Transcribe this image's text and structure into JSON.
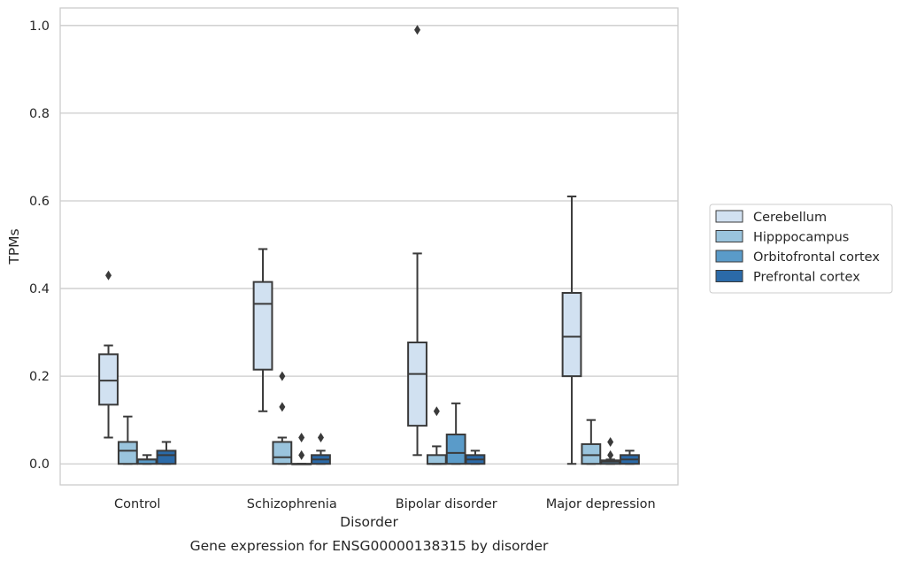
{
  "chart_data": {
    "type": "box",
    "title": "",
    "caption": "Gene expression for ENSG00000138315 by disorder",
    "xlabel": "Disorder",
    "ylabel": "TPMs",
    "ylim": [
      -0.048,
      1.04
    ],
    "yticks": [
      "0.0",
      "0.2",
      "0.4",
      "0.6",
      "0.8",
      "1.0"
    ],
    "grid": true,
    "legend_position": "right",
    "categories": [
      "Control",
      "Schizophrenia",
      "Bipolar disorder",
      "Major depression"
    ],
    "series": [
      {
        "name": "Cerebellum",
        "color": "#d1e1f1",
        "boxes": [
          {
            "whislo": 0.06,
            "q1": 0.135,
            "med": 0.19,
            "q3": 0.25,
            "whishi": 0.27,
            "fliers": [
              0.43
            ]
          },
          {
            "whislo": 0.12,
            "q1": 0.215,
            "med": 0.365,
            "q3": 0.415,
            "whishi": 0.49,
            "fliers": []
          },
          {
            "whislo": 0.02,
            "q1": 0.087,
            "med": 0.205,
            "q3": 0.277,
            "whishi": 0.48,
            "fliers": [
              0.99
            ]
          },
          {
            "whislo": 0.0,
            "q1": 0.2,
            "med": 0.29,
            "q3": 0.39,
            "whishi": 0.61,
            "fliers": []
          }
        ]
      },
      {
        "name": "Hipppocampus",
        "color": "#9ac4dd",
        "boxes": [
          {
            "whislo": 0.0,
            "q1": 0.0,
            "med": 0.03,
            "q3": 0.05,
            "whishi": 0.108,
            "fliers": []
          },
          {
            "whislo": 0.0,
            "q1": 0.0,
            "med": 0.015,
            "q3": 0.05,
            "whishi": 0.06,
            "fliers": [
              0.2,
              0.13
            ]
          },
          {
            "whislo": 0.0,
            "q1": 0.0,
            "med": 0.0,
            "q3": 0.02,
            "whishi": 0.04,
            "fliers": [
              0.12
            ]
          },
          {
            "whislo": 0.0,
            "q1": 0.0,
            "med": 0.02,
            "q3": 0.045,
            "whishi": 0.1,
            "fliers": []
          }
        ]
      },
      {
        "name": "Orbitofrontal cortex",
        "color": "#5a9bc9",
        "boxes": [
          {
            "whislo": 0.0,
            "q1": 0.0,
            "med": 0.01,
            "q3": 0.01,
            "whishi": 0.02,
            "fliers": []
          },
          {
            "whislo": 0.0,
            "q1": 0.0,
            "med": 0.0,
            "q3": 0.0,
            "whishi": 0.0,
            "fliers": [
              0.06,
              0.02
            ]
          },
          {
            "whislo": 0.0,
            "q1": 0.0,
            "med": 0.025,
            "q3": 0.067,
            "whishi": 0.138,
            "fliers": []
          },
          {
            "whislo": 0.0,
            "q1": 0.0,
            "med": 0.005,
            "q3": 0.008,
            "whishi": 0.01,
            "fliers": [
              0.05,
              0.02
            ]
          }
        ]
      },
      {
        "name": "Prefrontal cortex",
        "color": "#2b6aa8",
        "boxes": [
          {
            "whislo": 0.0,
            "q1": 0.0,
            "med": 0.02,
            "q3": 0.03,
            "whishi": 0.05,
            "fliers": []
          },
          {
            "whislo": 0.0,
            "q1": 0.0,
            "med": 0.01,
            "q3": 0.02,
            "whishi": 0.03,
            "fliers": [
              0.06
            ]
          },
          {
            "whislo": 0.0,
            "q1": 0.0,
            "med": 0.01,
            "q3": 0.02,
            "whishi": 0.03,
            "fliers": []
          },
          {
            "whislo": 0.0,
            "q1": 0.0,
            "med": 0.01,
            "q3": 0.02,
            "whishi": 0.03,
            "fliers": []
          }
        ]
      }
    ]
  }
}
